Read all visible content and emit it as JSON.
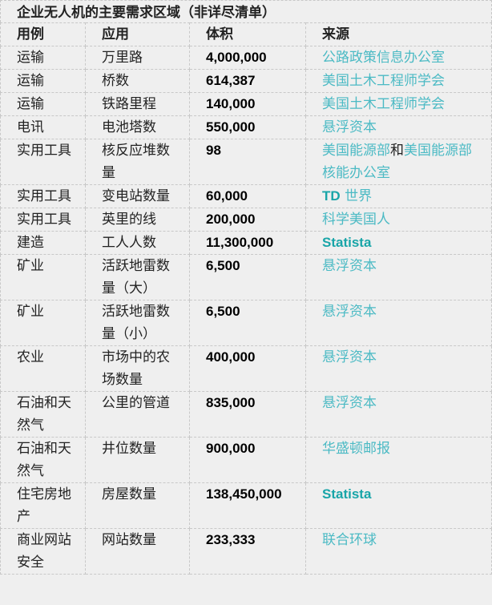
{
  "title": "企业无人机的主要需求区域（非详尽清单）",
  "colors": {
    "link": "#4bbac4",
    "brand_link": "#19a5a8",
    "background": "#efefef",
    "border": "#c8c8c8"
  },
  "headers": [
    "用例",
    "应用",
    "体积",
    "来源"
  ],
  "rows": [
    {
      "use_case": "运输",
      "application": "万里路",
      "volume": "4,000,000",
      "source": [
        {
          "text": "公路政策信息办公室",
          "style": "link"
        }
      ]
    },
    {
      "use_case": "运输",
      "application": "桥数",
      "volume": "614,387",
      "source": [
        {
          "text": "美国土木工程师学会",
          "style": "link"
        }
      ]
    },
    {
      "use_case": "运输",
      "application": "铁路里程",
      "volume": "140,000",
      "source": [
        {
          "text": "美国土木工程师学会",
          "style": "link"
        }
      ]
    },
    {
      "use_case": "电讯",
      "application": "电池塔数",
      "volume": "550,000",
      "source": [
        {
          "text": "悬浮资本",
          "style": "link"
        }
      ]
    },
    {
      "use_case": "实用工具",
      "application": "核反应堆数量",
      "volume": "98",
      "source": [
        {
          "text": "美国能源部",
          "style": "link"
        },
        {
          "text": "和",
          "style": "plain"
        },
        {
          "text": "美国能源部核能办公室",
          "style": "link"
        }
      ]
    },
    {
      "use_case": "实用工具",
      "application": "变电站数量",
      "volume": "60,000",
      "source": [
        {
          "text": "TD",
          "style": "bold"
        },
        {
          "text": " 世界",
          "style": "link"
        }
      ]
    },
    {
      "use_case": "实用工具",
      "application": "英里的线",
      "volume": "200,000",
      "source": [
        {
          "text": "科学美国人",
          "style": "link"
        }
      ]
    },
    {
      "use_case": "建造",
      "application": "工人人数",
      "volume": "11,300,000",
      "source": [
        {
          "text": "Statista",
          "style": "bold"
        }
      ]
    },
    {
      "use_case": "矿业",
      "application": "活跃地雷数量（大）",
      "volume": "6,500",
      "source": [
        {
          "text": "悬浮资本",
          "style": "link"
        }
      ]
    },
    {
      "use_case": "矿业",
      "application": "活跃地雷数量（小）",
      "volume": "6,500",
      "source": [
        {
          "text": "悬浮资本",
          "style": "link"
        }
      ]
    },
    {
      "use_case": "农业",
      "application": "市场中的农场数量",
      "volume": "400,000",
      "source": [
        {
          "text": "悬浮资本",
          "style": "link"
        }
      ]
    },
    {
      "use_case": "石油和天然气",
      "application": "公里的管道",
      "volume": "835,000",
      "source": [
        {
          "text": "悬浮资本",
          "style": "link"
        }
      ]
    },
    {
      "use_case": "石油和天然气",
      "application": "井位数量",
      "volume": "900,000",
      "source": [
        {
          "text": "华盛顿邮报",
          "style": "link"
        }
      ]
    },
    {
      "use_case": "住宅房地产",
      "application": "房屋数量",
      "volume": "138,450,000",
      "source": [
        {
          "text": "Statista",
          "style": "bold"
        }
      ]
    },
    {
      "use_case": "商业网站安全",
      "application": "网站数量",
      "volume": "233,333",
      "source": [
        {
          "text": "联合环球",
          "style": "link"
        }
      ]
    }
  ]
}
